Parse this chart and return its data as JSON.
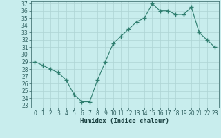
{
  "x": [
    0,
    1,
    2,
    3,
    4,
    5,
    6,
    7,
    8,
    9,
    10,
    11,
    12,
    13,
    14,
    15,
    16,
    17,
    18,
    19,
    20,
    21,
    22,
    23
  ],
  "y": [
    29,
    28.5,
    28,
    27.5,
    26.5,
    24.5,
    23.5,
    23.5,
    26.5,
    29,
    31.5,
    32.5,
    33.5,
    34.5,
    35,
    37,
    36,
    36,
    35.5,
    35.5,
    36.5,
    33,
    32,
    31
  ],
  "line_color": "#2e7d6e",
  "marker": "+",
  "marker_size": 4,
  "bg_color": "#c8eded",
  "grid_color": "#aed4d4",
  "xlabel": "Humidex (Indice chaleur)",
  "ylim": [
    23,
    37
  ],
  "xlim": [
    -0.5,
    23.5
  ],
  "yticks": [
    23,
    24,
    25,
    26,
    27,
    28,
    29,
    30,
    31,
    32,
    33,
    34,
    35,
    36,
    37
  ],
  "xticks": [
    0,
    1,
    2,
    3,
    4,
    5,
    6,
    7,
    8,
    9,
    10,
    11,
    12,
    13,
    14,
    15,
    16,
    17,
    18,
    19,
    20,
    21,
    22,
    23
  ],
  "tick_fontsize": 5.5,
  "label_fontsize": 6.5,
  "line_width": 0.8,
  "marker_color": "#2e7d6e"
}
